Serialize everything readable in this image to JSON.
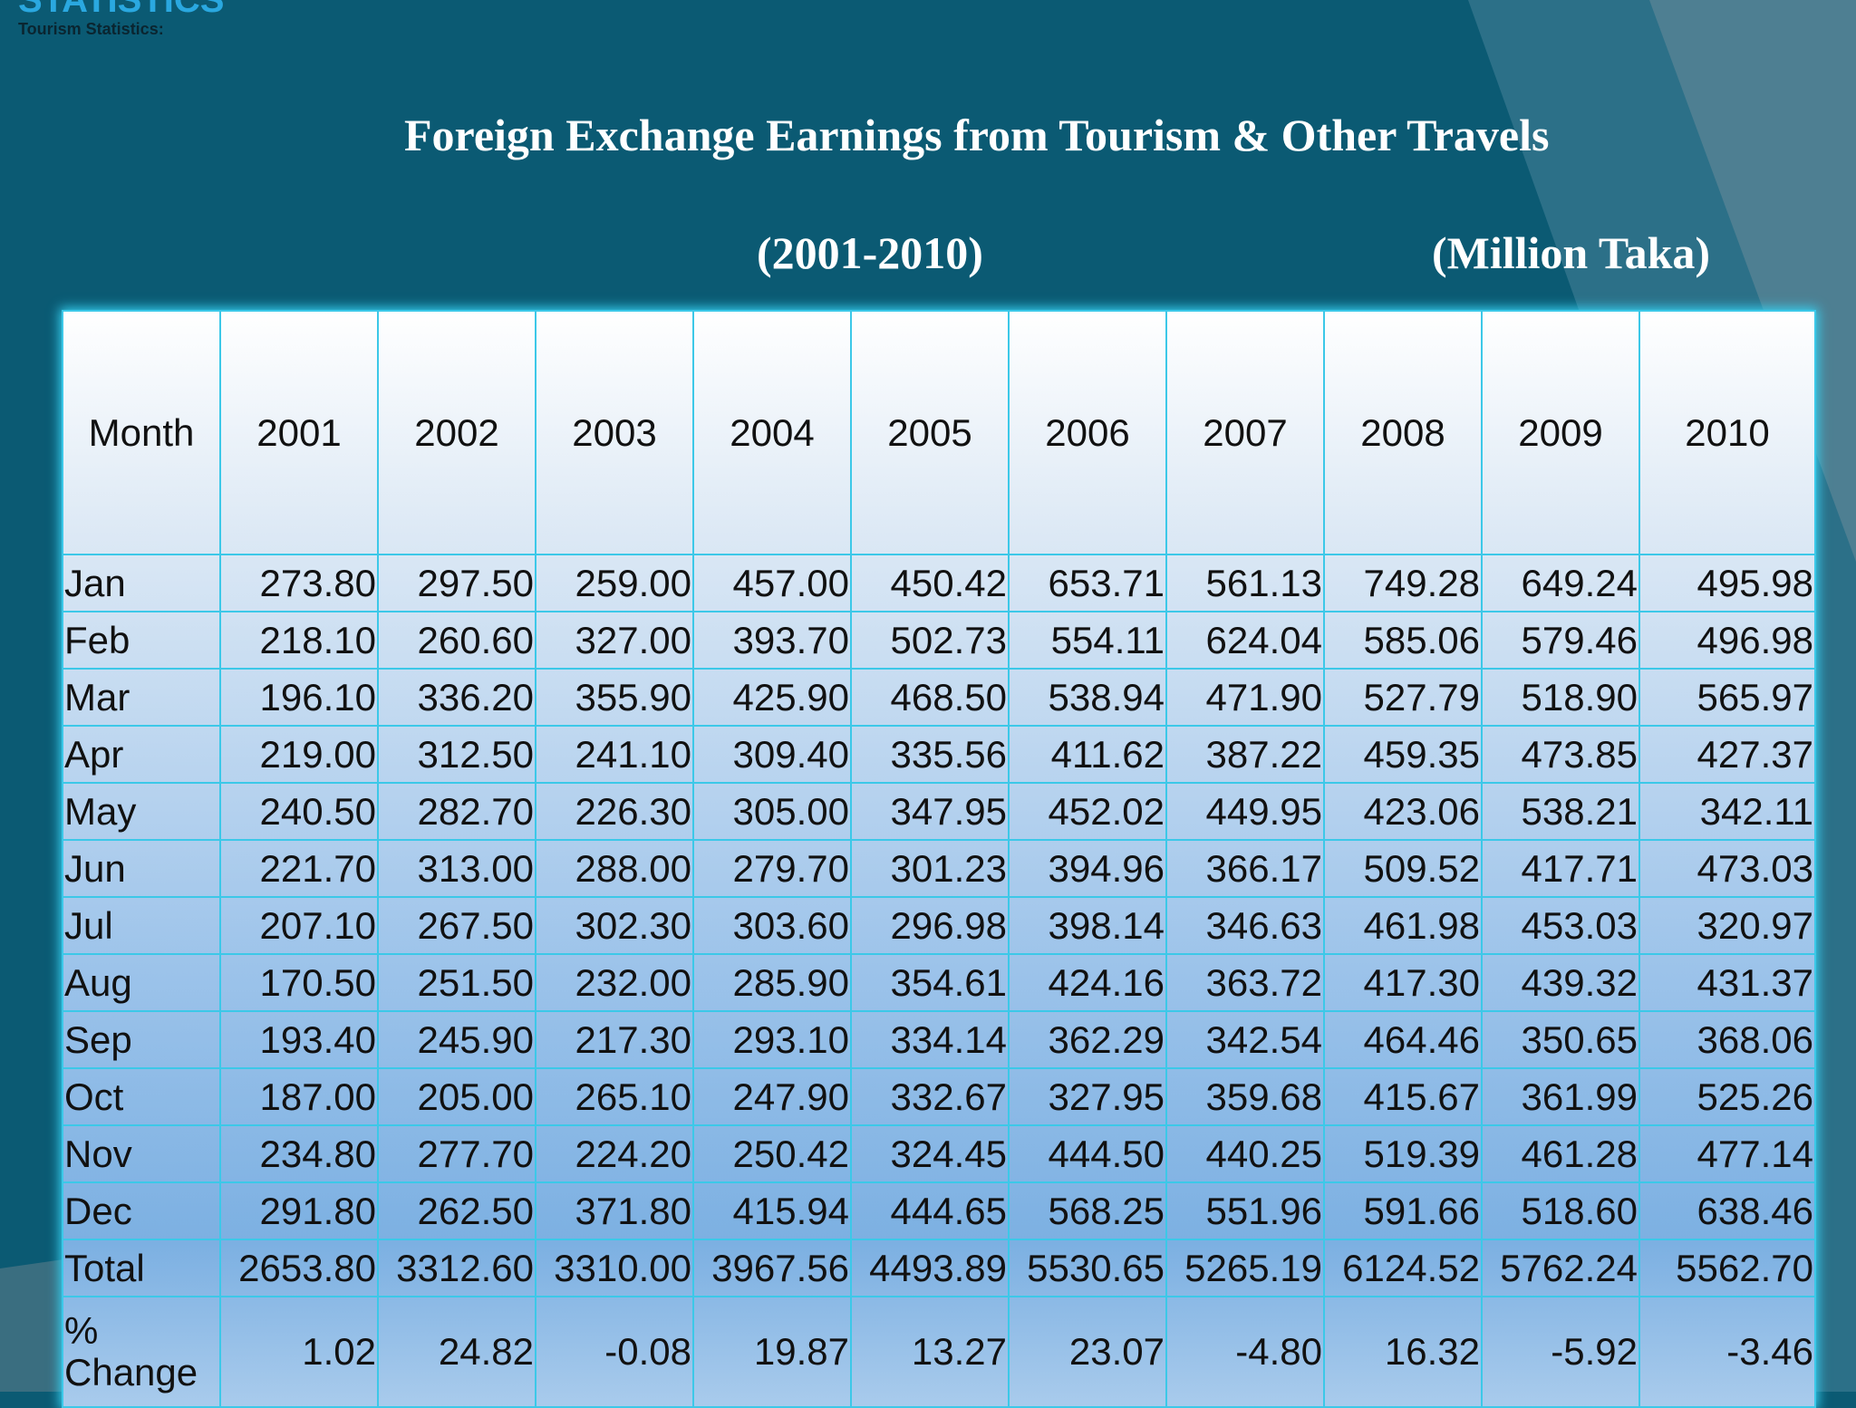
{
  "header": {
    "section": "STATISTICS",
    "subtitle": "Tourism Statistics:"
  },
  "title": "Foreign Exchange Earnings from Tourism & Other Travels",
  "period": "(2001-2010)",
  "unit": "(Million Taka)",
  "table": {
    "headers": [
      "Month",
      "2001",
      "2002",
      "2003",
      "2004",
      "2005",
      "2006",
      "2007",
      "2008",
      "2009",
      "2010"
    ],
    "rows": [
      [
        "Jan",
        "273.80",
        "297.50",
        "259.00",
        "457.00",
        "450.42",
        "653.71",
        "561.13",
        "749.28",
        "649.24",
        "495.98"
      ],
      [
        "Feb",
        "218.10",
        "260.60",
        "327.00",
        "393.70",
        "502.73",
        "554.11",
        "624.04",
        "585.06",
        "579.46",
        "496.98"
      ],
      [
        "Mar",
        "196.10",
        "336.20",
        "355.90",
        "425.90",
        "468.50",
        "538.94",
        "471.90",
        "527.79",
        "518.90",
        "565.97"
      ],
      [
        "Apr",
        "219.00",
        "312.50",
        "241.10",
        "309.40",
        "335.56",
        "411.62",
        "387.22",
        "459.35",
        "473.85",
        "427.37"
      ],
      [
        "May",
        "240.50",
        "282.70",
        "226.30",
        "305.00",
        "347.95",
        "452.02",
        "449.95",
        "423.06",
        "538.21",
        "342.11"
      ],
      [
        "Jun",
        "221.70",
        "313.00",
        "288.00",
        "279.70",
        "301.23",
        "394.96",
        "366.17",
        "509.52",
        "417.71",
        "473.03"
      ],
      [
        "Jul",
        "207.10",
        "267.50",
        "302.30",
        "303.60",
        "296.98",
        "398.14",
        "346.63",
        "461.98",
        "453.03",
        "320.97"
      ],
      [
        "Aug",
        "170.50",
        "251.50",
        "232.00",
        "285.90",
        "354.61",
        "424.16",
        "363.72",
        "417.30",
        "439.32",
        "431.37"
      ],
      [
        "Sep",
        "193.40",
        "245.90",
        "217.30",
        "293.10",
        "334.14",
        "362.29",
        "342.54",
        "464.46",
        "350.65",
        "368.06"
      ],
      [
        "Oct",
        "187.00",
        "205.00",
        "265.10",
        "247.90",
        "332.67",
        "327.95",
        "359.68",
        "415.67",
        "361.99",
        "525.26"
      ],
      [
        "Nov",
        "234.80",
        "277.70",
        "224.20",
        "250.42",
        "324.45",
        "444.50",
        "440.25",
        "519.39",
        "461.28",
        "477.14"
      ],
      [
        "Dec",
        "291.80",
        "262.50",
        "371.80",
        "415.94",
        "444.65",
        "568.25",
        "551.96",
        "591.66",
        "518.60",
        "638.46"
      ],
      [
        "Total",
        "2653.80",
        "3312.60",
        "3310.00",
        "3967.56",
        "4493.89",
        "5530.65",
        "5265.19",
        "6124.52",
        "5762.24",
        "5562.70"
      ],
      [
        "% Change",
        "1.02",
        "24.82",
        "-0.08",
        "19.87",
        "13.27",
        "23.07",
        "-4.80",
        "16.32",
        "-5.92",
        "-3.46"
      ]
    ]
  }
}
